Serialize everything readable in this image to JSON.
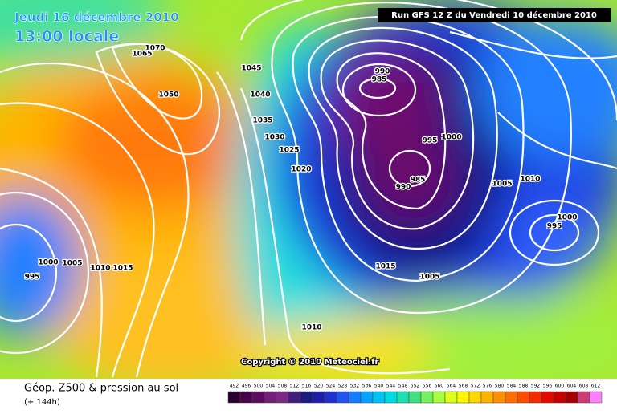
{
  "header": {
    "date": "Jeudi 16 décembre 2010",
    "time": "13:00 locale",
    "run": "Run GFS 12 Z du Vendredi 10 décembre 2010"
  },
  "copyright": "Copyright © 2010 Meteociel.fr",
  "isobar_labels": [
    "1070",
    "1065",
    "1050",
    "1045",
    "1040",
    "1035",
    "1030",
    "1025",
    "1020",
    "1015",
    "1010",
    "1005",
    "1000",
    "1005",
    "1010",
    "1015",
    "995",
    "990",
    "985",
    "995",
    "1000",
    "985",
    "990",
    "1005",
    "1010",
    "1000",
    "995"
  ],
  "legend": {
    "title": "Géop. Z500 & pression au sol",
    "subtitle": "(+ 144h)",
    "scale": [
      492,
      496,
      500,
      504,
      508,
      512,
      516,
      520,
      524,
      528,
      532,
      536,
      540,
      544,
      548,
      552,
      556,
      560,
      564,
      568,
      572,
      576,
      580,
      584,
      588,
      592,
      596,
      600,
      604,
      608,
      612
    ]
  }
}
